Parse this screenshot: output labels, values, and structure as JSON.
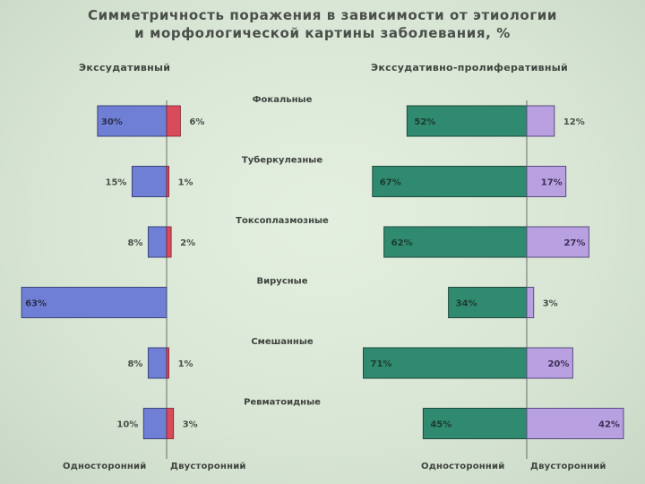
{
  "title": {
    "line1": "Симметричность поражения в зависимости от этиологии",
    "line2": "и морфологической картины заболевания, %"
  },
  "panels": {
    "left_title": "Экссудативный",
    "right_title": "Экссудативно-пролиферативный"
  },
  "axis_labels": {
    "left_one": "Односторонний",
    "left_two": "Двусторонний",
    "right_one": "Односторонний",
    "right_two": "Двусторонний"
  },
  "colors": {
    "exudative_one": "#6f7fd6",
    "exudative_two": "#d94a5a",
    "prolif_one": "#2f8a6f",
    "prolif_two": "#b9a0e0",
    "axis": "#6b6f6b",
    "label_text_dark": "#4a4f4a",
    "label_text_on_bar": "#2a2f4a"
  },
  "chart_data": {
    "type": "bar",
    "categories": [
      "Фокальные",
      "Туберкулезные",
      "Токсоплазмозные",
      "Вирусные",
      "Смешанные",
      "Ревматоидные"
    ],
    "panels": [
      {
        "name": "Экссудативный",
        "series": [
          {
            "name": "Односторонний",
            "values": [
              30,
              15,
              8,
              63,
              8,
              10
            ]
          },
          {
            "name": "Двусторонний",
            "values": [
              6,
              1,
              2,
              0,
              1,
              3
            ]
          }
        ]
      },
      {
        "name": "Экссудативно-пролиферативный",
        "series": [
          {
            "name": "Односторонний",
            "values": [
              52,
              67,
              62,
              34,
              71,
              45
            ]
          },
          {
            "name": "Двусторонний",
            "values": [
              12,
              17,
              27,
              3,
              20,
              42
            ]
          }
        ]
      }
    ],
    "value_labels": {
      "left_one": [
        "30%",
        "15%",
        "8%",
        "63%",
        "8%",
        "10%"
      ],
      "left_two": [
        "6%",
        "1%",
        "2%",
        "",
        "1%",
        "3%"
      ],
      "right_one": [
        "52%",
        "67%",
        "62%",
        "34%",
        "71%",
        "45%"
      ],
      "right_two": [
        "12%",
        "17%",
        "27%",
        "3%",
        "20%",
        "42%"
      ]
    },
    "xlabel": "",
    "ylabel": ""
  }
}
